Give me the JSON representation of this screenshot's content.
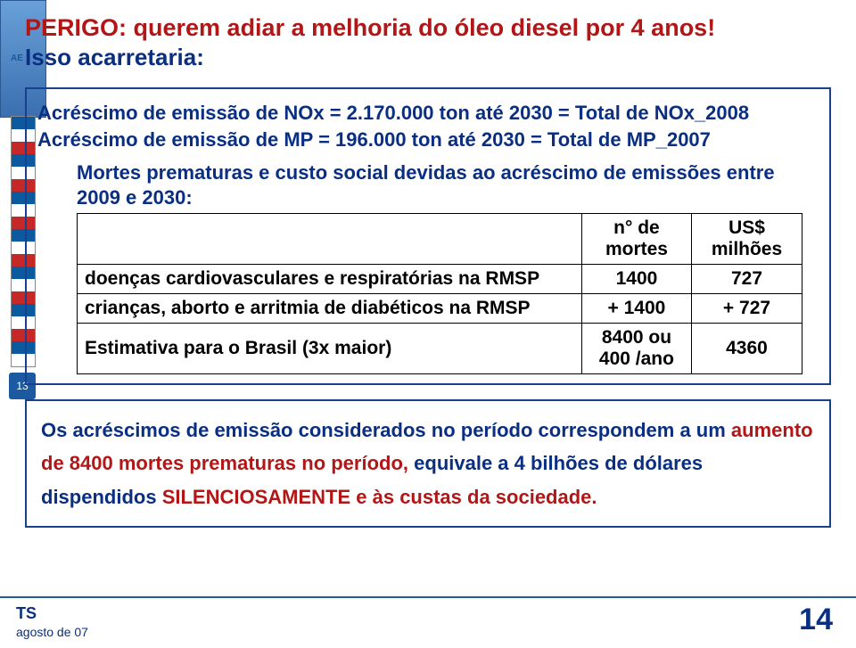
{
  "title": "PERIGO: querem adiar a melhoria do óleo diesel por 4 anos!",
  "subtitle": "Isso acarretaria:",
  "sidebar": {
    "brand": "AE",
    "badge": "13"
  },
  "box1": {
    "line1": "Acréscimo de emissão de NOx = 2.170.000 ton até 2030 = Total de NOx_2008",
    "line2": "Acréscimo de emissão de MP = 196.000 ton até 2030 = Total de MP_2007"
  },
  "mortes": {
    "heading": "Mortes prematuras e custo social devidas ao acréscimo de emissões entre 2009 e 2030:",
    "columns": [
      "",
      "n° de mortes",
      "US$ milhões"
    ],
    "rows": [
      {
        "label": "doenças cardiovasculares e respiratórias na RMSP",
        "col1": "1400",
        "col2": "727"
      },
      {
        "label": "crianças, aborto e arritmia de diabéticos na RMSP",
        "col1": "+ 1400",
        "col2": "+ 727"
      },
      {
        "label": "Estimativa para o Brasil (3x maior)",
        "col1": "8400 ou 400 /ano",
        "col2": "4360"
      }
    ]
  },
  "box2": {
    "seg1": "Os acréscimos de  emissão considerados no período correspondem a um ",
    "seg2_red": "aumento de 8400 mortes prematuras no período, ",
    "seg3": "equivale a 4 bilhões de dólares dispendidos ",
    "seg4_red": "SILENCIOSAMENTE e às custas da sociedade."
  },
  "footer": {
    "ts": "TS",
    "date": "agosto de 07",
    "page": "14"
  },
  "colors": {
    "red": "#b21616",
    "blue": "#0a2f82",
    "border": "#1b3f8f"
  }
}
